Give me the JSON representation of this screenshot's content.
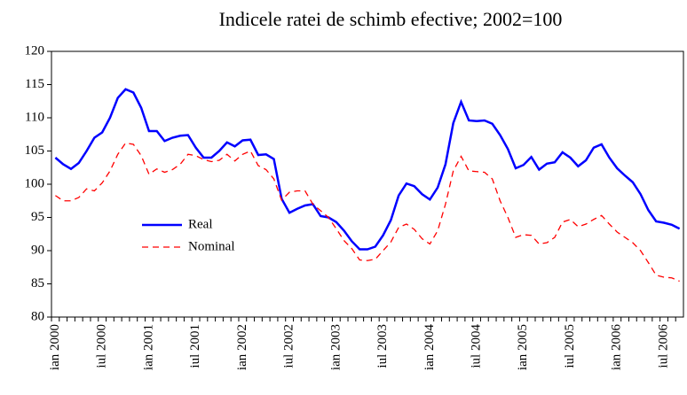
{
  "chart_data": {
    "type": "line",
    "title": "Indicele ratei de schimb efective; 2002=100",
    "categories": [
      "ian 2000",
      null,
      null,
      null,
      null,
      null,
      "iul 2000",
      null,
      null,
      null,
      null,
      null,
      "ian 2001",
      null,
      null,
      null,
      null,
      null,
      "iul 2001",
      null,
      null,
      null,
      null,
      null,
      "ian 2002",
      null,
      null,
      null,
      null,
      null,
      "iul 2002",
      null,
      null,
      null,
      null,
      null,
      "ian 2003",
      null,
      null,
      null,
      null,
      null,
      "iul 2003",
      null,
      null,
      null,
      null,
      null,
      "ian 2004",
      null,
      null,
      null,
      null,
      null,
      "iul 2004",
      null,
      null,
      null,
      null,
      null,
      "ian 2005",
      null,
      null,
      null,
      null,
      null,
      "iul 2005",
      null,
      null,
      null,
      null,
      null,
      "ian 2006",
      null,
      null,
      null,
      null,
      null,
      "iul 2006",
      null,
      null
    ],
    "series": [
      {
        "name": "Real",
        "color": "#0000ff",
        "dash": false,
        "values": [
          104,
          103,
          102.3,
          103.2,
          105,
          107,
          107.8,
          110,
          113,
          114.3,
          113.8,
          111.5,
          108,
          108,
          106.5,
          107,
          107.3,
          107.4,
          105.5,
          104,
          104,
          105,
          106.3,
          105.7,
          106.6,
          106.7,
          104.4,
          104.5,
          103.8,
          97.8,
          95.7,
          96.3,
          96.8,
          97,
          95.2,
          95,
          94.3,
          93,
          91.4,
          90.2,
          90.2,
          90.6,
          92.3,
          94.6,
          98.3,
          100.1,
          99.7,
          98.5,
          97.7,
          99.5,
          103,
          109.2,
          112.4,
          109.6,
          109.5,
          109.6,
          109.1,
          107.4,
          105.3,
          102.4,
          102.9,
          104.1,
          102.2,
          103.1,
          103.3,
          104.8,
          104,
          102.7,
          103.6,
          105.5,
          106,
          104,
          102.4,
          101.3,
          100.3,
          98.5,
          96.1,
          94.4,
          94.2,
          93.9,
          93.3
        ]
      },
      {
        "name": "Nominal",
        "color": "#ff0000",
        "dash": true,
        "values": [
          98.3,
          97.5,
          97.5,
          98,
          99.3,
          99,
          100.2,
          102,
          104.5,
          106.2,
          106,
          104.3,
          101.5,
          102.3,
          101.8,
          102.2,
          103,
          104.5,
          104.3,
          103.7,
          103.4,
          103.6,
          104.5,
          103.5,
          104.5,
          105,
          102.8,
          102.2,
          100.8,
          97.6,
          98.8,
          99,
          99,
          97,
          96,
          95,
          93.3,
          91.5,
          90.3,
          88.6,
          88.5,
          88.7,
          90,
          91.3,
          93.5,
          94,
          93.2,
          91.8,
          91,
          93,
          97,
          102,
          104.2,
          102,
          101.9,
          101.8,
          100.8,
          97.5,
          95,
          92,
          92.4,
          92.3,
          91,
          91.2,
          92,
          94.3,
          94.7,
          93.6,
          94,
          94.7,
          95.3,
          94,
          92.8,
          92,
          91.2,
          90,
          88.2,
          86.3,
          86,
          85.9,
          85.4
        ]
      }
    ],
    "ylim": [
      80,
      120
    ],
    "yticks": [
      80,
      85,
      90,
      95,
      100,
      105,
      110,
      115,
      120
    ],
    "grid": false
  }
}
